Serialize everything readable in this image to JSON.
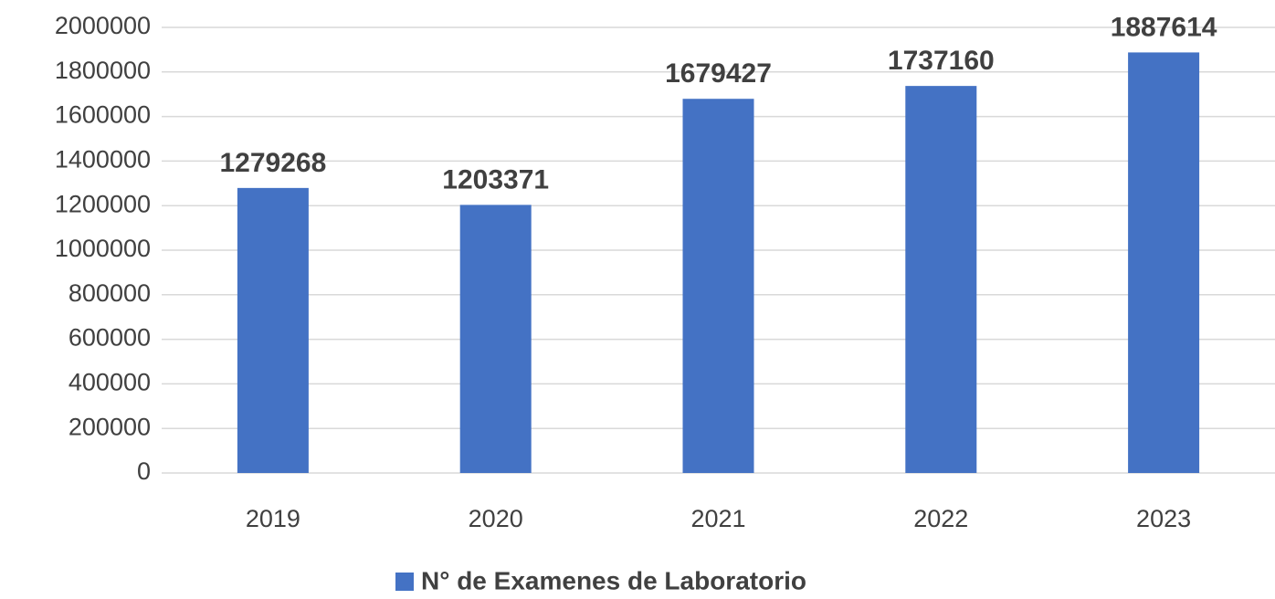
{
  "chart_data": {
    "type": "bar",
    "categories": [
      "2019",
      "2020",
      "2021",
      "2022",
      "2023"
    ],
    "series": [
      {
        "name": "N° de Examenes de Laboratorio",
        "color": "#4472c4",
        "values": [
          1279268,
          1203371,
          1679427,
          1737160,
          1887614
        ]
      }
    ],
    "ylim": [
      0,
      2000000
    ],
    "yticks": [
      0,
      200000,
      400000,
      600000,
      800000,
      1000000,
      1200000,
      1400000,
      1600000,
      1800000,
      2000000
    ],
    "grid": true,
    "legend": "bottom"
  }
}
